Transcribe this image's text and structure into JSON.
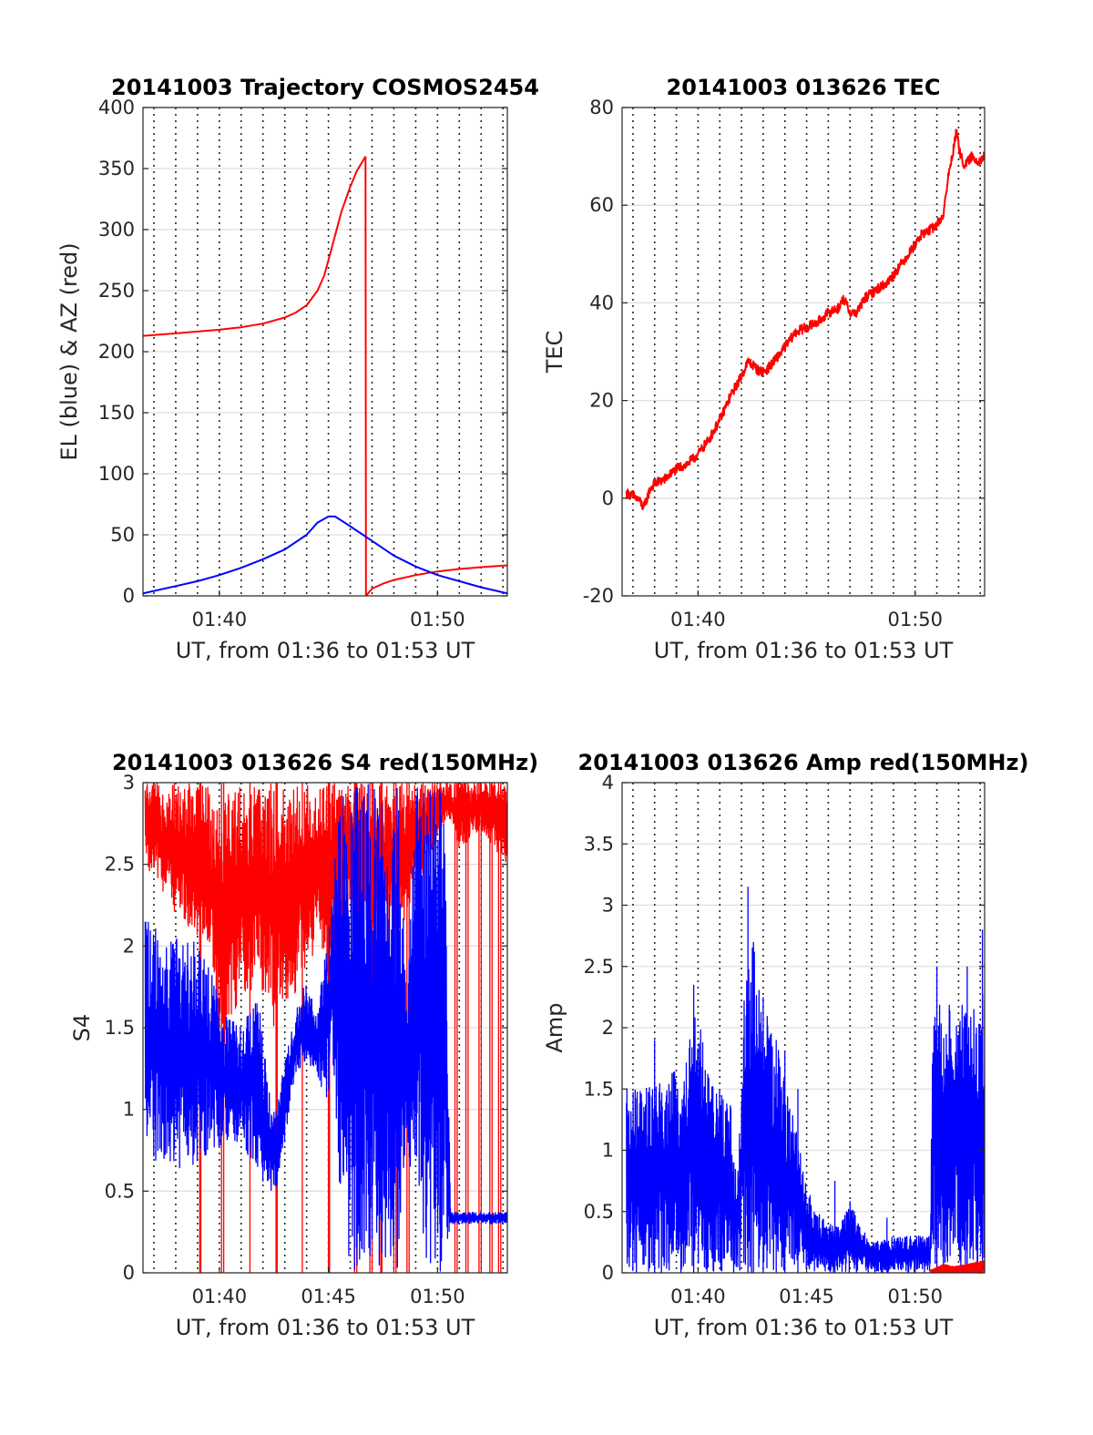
{
  "chart_data": [
    {
      "id": "trajectory",
      "type": "line",
      "title": "20141003 Trajectory COSMOS2454",
      "xlabel": "UT, from 01:36 to 01:53 UT",
      "ylabel": "EL (blue) & AZ (red)",
      "xlim": [
        96.5,
        113.2
      ],
      "ylim": [
        0,
        400
      ],
      "xticks": [
        {
          "v": 100,
          "label": "01:40"
        },
        {
          "v": 110,
          "label": "01:50"
        }
      ],
      "yticks": [
        0,
        50,
        100,
        150,
        200,
        250,
        300,
        350,
        400
      ],
      "minute_grid": true,
      "series": [
        {
          "color": "#ff0000",
          "points": [
            [
              96.5,
              213
            ],
            [
              98,
              215
            ],
            [
              100,
              218
            ],
            [
              101,
              220
            ],
            [
              102,
              223
            ],
            [
              103,
              228
            ],
            [
              103.5,
              232
            ],
            [
              104,
              238
            ],
            [
              104.5,
              250
            ],
            [
              104.8,
              262
            ],
            [
              105,
              275
            ],
            [
              105.3,
              295
            ],
            [
              105.6,
              315
            ],
            [
              106,
              335
            ],
            [
              106.3,
              348
            ],
            [
              106.7,
              360
            ]
          ]
        },
        {
          "color": "#ff0000",
          "points": [
            [
              106.7,
              360
            ],
            [
              106.72,
              0
            ]
          ]
        },
        {
          "color": "#ff0000",
          "points": [
            [
              106.72,
              0
            ],
            [
              107,
              6
            ],
            [
              107.5,
              10
            ],
            [
              108,
              13
            ],
            [
              109,
              17
            ],
            [
              110,
              20
            ],
            [
              111,
              22
            ],
            [
              112,
              23.5
            ],
            [
              113.2,
              25
            ]
          ]
        },
        {
          "color": "#0000ff",
          "points": [
            [
              96.5,
              2
            ],
            [
              98,
              8
            ],
            [
              99,
              12
            ],
            [
              100,
              17
            ],
            [
              101,
              23
            ],
            [
              102,
              30
            ],
            [
              103,
              38
            ],
            [
              104,
              50
            ],
            [
              104.5,
              60
            ],
            [
              105,
              65
            ],
            [
              105.3,
              65
            ],
            [
              106,
              57
            ],
            [
              107,
              45
            ],
            [
              108,
              33
            ],
            [
              109,
              24
            ],
            [
              110,
              17
            ],
            [
              111,
              12
            ],
            [
              112,
              7
            ],
            [
              113.2,
              2
            ]
          ]
        }
      ]
    },
    {
      "id": "tec",
      "type": "line",
      "title": "20141003 013626 TEC",
      "xlabel": "UT, from 01:36 to 01:53 UT",
      "ylabel": "TEC",
      "xlim": [
        96.5,
        113.2
      ],
      "ylim": [
        -20,
        80
      ],
      "xticks": [
        {
          "v": 100,
          "label": "01:40"
        },
        {
          "v": 110,
          "label": "01:50"
        }
      ],
      "yticks": [
        -20,
        0,
        20,
        40,
        60,
        80
      ],
      "minute_grid": true,
      "series": [
        {
          "color": "#ff0000",
          "noise": 1.0,
          "points": [
            [
              96.7,
              1
            ],
            [
              97,
              0.5
            ],
            [
              97.3,
              -0.5
            ],
            [
              97.5,
              -2
            ],
            [
              97.8,
              2
            ],
            [
              98,
              3
            ],
            [
              98.5,
              4
            ],
            [
              99,
              6
            ],
            [
              99.5,
              7
            ],
            [
              100,
              9
            ],
            [
              100.5,
              12
            ],
            [
              101,
              16
            ],
            [
              101.5,
              21
            ],
            [
              102,
              25
            ],
            [
              102.3,
              28
            ],
            [
              102.6,
              27
            ],
            [
              102.8,
              26
            ],
            [
              103.1,
              26
            ],
            [
              103.5,
              28
            ],
            [
              104,
              31
            ],
            [
              104.5,
              34
            ],
            [
              105,
              35
            ],
            [
              105.5,
              36
            ],
            [
              106,
              38
            ],
            [
              106.5,
              39
            ],
            [
              106.7,
              41
            ],
            [
              107,
              38
            ],
            [
              107.3,
              38
            ],
            [
              107.7,
              41
            ],
            [
              108.3,
              43
            ],
            [
              108.7,
              44
            ],
            [
              109.2,
              47
            ],
            [
              109.7,
              50
            ],
            [
              110,
              52
            ],
            [
              110.3,
              54
            ],
            [
              110.7,
              55
            ],
            [
              111,
              56
            ],
            [
              111.3,
              58
            ],
            [
              111.5,
              65
            ],
            [
              111.7,
              70
            ],
            [
              111.9,
              75
            ],
            [
              112.1,
              70
            ],
            [
              112.3,
              68
            ],
            [
              112.6,
              70
            ],
            [
              112.9,
              69
            ],
            [
              113.2,
              70
            ]
          ]
        }
      ]
    },
    {
      "id": "s4",
      "type": "line",
      "title": "20141003 013626 S4 red(150MHz)",
      "xlabel": "UT, from 01:36 to 01:53 UT",
      "ylabel": "S4",
      "xlim": [
        96.5,
        113.2
      ],
      "ylim": [
        0,
        3
      ],
      "xticks": [
        {
          "v": 100,
          "label": "01:40"
        },
        {
          "v": 105,
          "label": "01:45"
        },
        {
          "v": 110,
          "label": "01:50"
        }
      ],
      "yticks": [
        0,
        0.5,
        1,
        1.5,
        2,
        2.5,
        3
      ],
      "minute_grid": true,
      "series": [
        {
          "color": "#ff0000",
          "band": [
            [
              96.6,
              2.5,
              3
            ],
            [
              98,
              2.2,
              3
            ],
            [
              99.5,
              2.0,
              3
            ],
            [
              100,
              1.3,
              3
            ],
            [
              101,
              1.6,
              3
            ],
            [
              101.8,
              1.8,
              3
            ],
            [
              102.5,
              1.5,
              3
            ],
            [
              103.5,
              1.7,
              3
            ],
            [
              104.5,
              2.0,
              3
            ],
            [
              105,
              1.8,
              3
            ],
            [
              106,
              2.2,
              3
            ],
            [
              107,
              2.0,
              3
            ],
            [
              108,
              2.0,
              3
            ],
            [
              109.5,
              2.5,
              3
            ],
            [
              110.5,
              2.8,
              3
            ],
            [
              111,
              2.6,
              3
            ],
            [
              112,
              2.7,
              3
            ],
            [
              113.2,
              2.5,
              3
            ]
          ],
          "drops": [
            99.1,
            99.15,
            100.1,
            100.2,
            101.4,
            102.6,
            102.65,
            103.8,
            105.0,
            105.05,
            106.2,
            106.3,
            106.9,
            107.0,
            107.4,
            107.45,
            108.0,
            108.1,
            108.6,
            108.7,
            110.8,
            110.9,
            111.3,
            111.4,
            111.9,
            112.0,
            112.4,
            112.5,
            112.8,
            112.9
          ]
        },
        {
          "color": "#0000ff",
          "band": [
            [
              96.6,
              0.6,
              2.3
            ],
            [
              97.5,
              0.7,
              2.0
            ],
            [
              98.5,
              0.6,
              2.1
            ],
            [
              99.5,
              0.7,
              1.9
            ],
            [
              100.2,
              0.8,
              1.6
            ],
            [
              101,
              0.8,
              1.5
            ],
            [
              101.8,
              0.6,
              1.7
            ],
            [
              102.2,
              0.5,
              1.2
            ],
            [
              102.6,
              0.5,
              1.0
            ],
            [
              103,
              0.8,
              1.3
            ],
            [
              103.5,
              1.2,
              1.6
            ],
            [
              104,
              1.3,
              1.8
            ],
            [
              104.5,
              1.2,
              1.6
            ],
            [
              104.9,
              1.0,
              2.0
            ],
            [
              105.2,
              1.3,
              2.5
            ],
            [
              105.5,
              0.5,
              3
            ],
            [
              106,
              0.0,
              3
            ],
            [
              107,
              0.0,
              3
            ],
            [
              107.5,
              0.0,
              3
            ],
            [
              108.2,
              0.0,
              3
            ],
            [
              108.6,
              0.8,
              1.6
            ],
            [
              109,
              0.4,
              3
            ],
            [
              109.6,
              0.0,
              3
            ],
            [
              110.0,
              0.0,
              3
            ],
            [
              110.3,
              0.0,
              3
            ],
            [
              110.6,
              0.3,
              0.37
            ],
            [
              111.5,
              0.3,
              0.37
            ],
            [
              113.2,
              0.3,
              0.37
            ]
          ]
        }
      ]
    },
    {
      "id": "amp",
      "type": "line",
      "title": "20141003 013626 Amp red(150MHz)",
      "xlabel": "UT, from 01:36 to 01:53 UT",
      "ylabel": "Amp",
      "xlim": [
        96.5,
        113.2
      ],
      "ylim": [
        0,
        4
      ],
      "xticks": [
        {
          "v": 100,
          "label": "01:40"
        },
        {
          "v": 105,
          "label": "01:45"
        },
        {
          "v": 110,
          "label": "01:50"
        }
      ],
      "yticks": [
        0,
        0.5,
        1,
        1.5,
        2,
        2.5,
        3,
        3.5,
        4
      ],
      "minute_grid": true,
      "series": [
        {
          "color": "#0000ff",
          "band": [
            [
              96.7,
              0,
              1.5
            ],
            [
              97.5,
              0,
              1.5
            ],
            [
              98.5,
              0,
              1.6
            ],
            [
              99.3,
              0,
              1.7
            ],
            [
              99.9,
              0,
              2.2
            ],
            [
              100.5,
              0,
              1.6
            ],
            [
              101.5,
              0,
              1.4
            ],
            [
              101.8,
              0,
              0.7
            ],
            [
              102.2,
              0,
              2.6
            ],
            [
              102.5,
              0,
              2.8
            ],
            [
              103.0,
              0,
              2.2
            ],
            [
              103.5,
              0,
              2.0
            ],
            [
              104.0,
              0,
              1.6
            ],
            [
              104.5,
              0,
              1.2
            ],
            [
              105.0,
              0,
              0.7
            ],
            [
              105.5,
              0,
              0.5
            ],
            [
              106.0,
              0,
              0.4
            ],
            [
              106.5,
              0,
              0.4
            ],
            [
              107.0,
              0,
              0.6
            ],
            [
              107.4,
              0,
              0.4
            ],
            [
              108.0,
              0,
              0.25
            ],
            [
              109.0,
              0,
              0.3
            ],
            [
              110.0,
              0,
              0.3
            ],
            [
              110.7,
              0,
              0.3
            ],
            [
              110.8,
              0,
              2.3
            ],
            [
              111.5,
              0,
              2.2
            ],
            [
              112.0,
              0,
              2.3
            ],
            [
              112.5,
              0,
              2.1
            ],
            [
              113.0,
              0,
              2.3
            ],
            [
              113.2,
              0,
              2.5
            ]
          ],
          "spikes": [
            [
              98.0,
              1.9
            ],
            [
              99.8,
              2.35
            ],
            [
              102.3,
              3.15
            ],
            [
              102.55,
              2.7
            ],
            [
              103.0,
              2.25
            ],
            [
              103.6,
              1.9
            ],
            [
              104.0,
              1.8
            ],
            [
              104.6,
              1.5
            ],
            [
              106.3,
              0.75
            ],
            [
              108.7,
              0.45
            ],
            [
              111.0,
              2.5
            ],
            [
              112.4,
              2.5
            ],
            [
              113.1,
              2.8
            ]
          ]
        },
        {
          "color": "#ff0000",
          "band": [
            [
              110.7,
              0,
              0.02
            ],
            [
              111.3,
              0,
              0.07
            ],
            [
              111.8,
              0,
              0.05
            ],
            [
              112.4,
              0,
              0.07
            ],
            [
              113.2,
              0,
              0.1
            ]
          ]
        }
      ]
    }
  ]
}
